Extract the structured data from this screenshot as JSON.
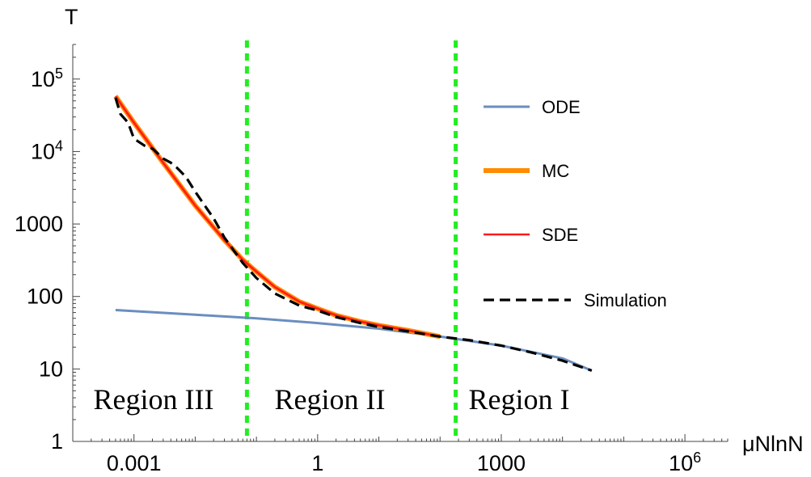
{
  "chart_data": {
    "type": "line",
    "title": "",
    "xlabel": "μNlnN",
    "ylabel": "T",
    "xscale": "log",
    "yscale": "log",
    "xlim": [
      0.0001,
      5000000
    ],
    "ylim": [
      1,
      300000
    ],
    "x_ticks": [
      {
        "value": 0.001,
        "label": "0.001"
      },
      {
        "value": 1,
        "label": "1"
      },
      {
        "value": 1000,
        "label": "1000"
      },
      {
        "value": 1000000,
        "label": "10",
        "sup": "6"
      }
    ],
    "y_ticks": [
      {
        "value": 1,
        "label": "1"
      },
      {
        "value": 10,
        "label": "10"
      },
      {
        "value": 100,
        "label": "100"
      },
      {
        "value": 1000,
        "label": "1000"
      },
      {
        "value": 10000,
        "label": "10",
        "sup": "4"
      },
      {
        "value": 100000,
        "label": "10",
        "sup": "5"
      }
    ],
    "grid": false,
    "legend_position": "right",
    "series": [
      {
        "name": "ODE",
        "color": "#6a8ebf",
        "style": "solid",
        "x": [
          0.0005,
          0.01,
          0.1,
          1,
          10,
          100,
          1000,
          10000,
          30000
        ],
        "y": [
          65,
          56,
          50,
          43,
          36,
          28,
          21,
          14,
          9.5
        ]
      },
      {
        "name": "MC",
        "color": "#ff8c00",
        "style": "solid",
        "x": [
          0.0005,
          0.001,
          0.003,
          0.01,
          0.03,
          0.06,
          0.1,
          0.2,
          0.5,
          1,
          2,
          5,
          10,
          30,
          100
        ],
        "y": [
          58000,
          25000,
          7000,
          1800,
          600,
          320,
          220,
          135,
          85,
          68,
          55,
          45,
          40,
          34,
          28
        ]
      },
      {
        "name": "SDE",
        "color": "#ff1a1a",
        "style": "solid",
        "x": [
          0.0005,
          0.001,
          0.003,
          0.01,
          0.03,
          0.06,
          0.1,
          0.2,
          0.5,
          1,
          2,
          5,
          10,
          30,
          100
        ],
        "y": [
          58000,
          25000,
          7000,
          1800,
          600,
          320,
          220,
          135,
          85,
          68,
          55,
          45,
          40,
          34,
          28
        ]
      },
      {
        "name": "Simulation",
        "color": "#000000",
        "style": "dashed",
        "x": [
          0.0005,
          0.0006,
          0.0008,
          0.001,
          0.0015,
          0.002,
          0.003,
          0.004,
          0.005,
          0.007,
          0.01,
          0.015,
          0.02,
          0.03,
          0.06,
          0.1,
          0.2,
          0.5,
          1,
          2,
          5,
          10,
          30,
          100,
          300,
          1000,
          3000,
          10000,
          30000
        ],
        "y": [
          55000,
          33000,
          25000,
          15000,
          12000,
          11000,
          8000,
          7000,
          6000,
          4500,
          2800,
          1700,
          1200,
          650,
          290,
          180,
          110,
          75,
          64,
          52,
          43,
          38,
          33,
          28,
          25,
          21,
          17,
          13,
          9.5
        ]
      }
    ],
    "vertical_lines": [
      {
        "x": 0.07,
        "color": "#22ee22",
        "style": "dotted"
      },
      {
        "x": 180,
        "color": "#22ee22",
        "style": "dotted"
      }
    ],
    "annotations": [
      "Region III",
      "Region II",
      "Region I"
    ]
  }
}
